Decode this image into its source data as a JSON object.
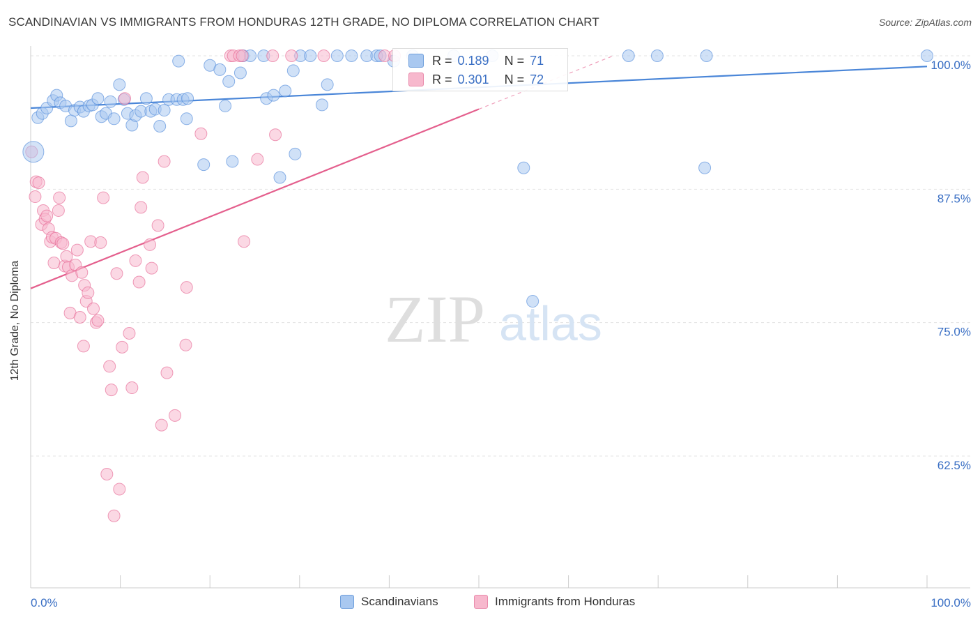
{
  "header": {
    "title": "SCANDINAVIAN VS IMMIGRANTS FROM HONDURAS 12TH GRADE, NO DIPLOMA CORRELATION CHART",
    "source": "Source: ZipAtlas.com"
  },
  "watermark": {
    "zip": "ZIP",
    "atlas": "atlas"
  },
  "correlation_legend": {
    "rows": [
      {
        "r_label": "R =",
        "r_value": "0.189",
        "n_label": "N =",
        "n_value": "71",
        "color": "#a9c8f0"
      },
      {
        "r_label": "R =",
        "r_value": "0.301",
        "n_label": "N =",
        "n_value": "72",
        "color": "#f7b8cd"
      }
    ]
  },
  "bottom_legend": {
    "items": [
      {
        "label": "Scandinavians",
        "color": "#a9c8f0"
      },
      {
        "label": "Immigrants from Honduras",
        "color": "#f7b8cd"
      }
    ]
  },
  "chart_data": {
    "type": "scatter",
    "title": "SCANDINAVIAN VS IMMIGRANTS FROM HONDURAS 12TH GRADE, NO DIPLOMA CORRELATION CHART",
    "xlabel": "",
    "ylabel": "12th Grade, No Diploma",
    "xlim": [
      0,
      100
    ],
    "ylim": [
      50,
      101.5
    ],
    "x_tick_labels": [
      "0.0%",
      "100.0%"
    ],
    "y_ticks": [
      62.5,
      75.0,
      87.5,
      100.0
    ],
    "y_tick_labels": [
      "62.5%",
      "75.0%",
      "87.5%",
      "100.0%"
    ],
    "grid": true,
    "series": [
      {
        "name": "Scandinavians",
        "color": "#4a86d8",
        "fill": "#a9c8f0",
        "trend": {
          "x0": 0,
          "y0": 95.1,
          "x1": 100,
          "y1": 99.0
        },
        "points": [
          [
            0.8,
            94.2
          ],
          [
            1.3,
            94.6
          ],
          [
            1.8,
            95.1
          ],
          [
            2.5,
            95.8
          ],
          [
            2.9,
            96.3
          ],
          [
            3.3,
            95.6
          ],
          [
            3.9,
            95.3
          ],
          [
            4.5,
            93.9
          ],
          [
            4.9,
            94.9
          ],
          [
            5.5,
            95.2
          ],
          [
            5.9,
            94.8
          ],
          [
            6.5,
            95.3
          ],
          [
            6.9,
            95.4
          ],
          [
            7.5,
            96.0
          ],
          [
            7.9,
            94.3
          ],
          [
            8.4,
            94.6
          ],
          [
            8.9,
            95.7
          ],
          [
            9.3,
            94.1
          ],
          [
            9.9,
            97.3
          ],
          [
            10.4,
            95.9
          ],
          [
            10.8,
            94.6
          ],
          [
            11.3,
            93.5
          ],
          [
            11.7,
            94.4
          ],
          [
            12.3,
            94.8
          ],
          [
            12.9,
            96.0
          ],
          [
            13.4,
            94.8
          ],
          [
            13.9,
            95.0
          ],
          [
            14.4,
            93.4
          ],
          [
            14.9,
            94.9
          ],
          [
            15.4,
            95.9
          ],
          [
            16.3,
            95.9
          ],
          [
            17.0,
            95.9
          ],
          [
            17.5,
            96.0
          ],
          [
            17.4,
            94.1
          ],
          [
            16.5,
            99.5
          ],
          [
            19.3,
            89.8
          ],
          [
            20.0,
            99.1
          ],
          [
            21.1,
            98.7
          ],
          [
            21.7,
            95.3
          ],
          [
            22.1,
            97.6
          ],
          [
            22.5,
            90.1
          ],
          [
            23.4,
            98.4
          ],
          [
            23.7,
            100.0
          ],
          [
            24.5,
            100.0
          ],
          [
            26.0,
            100.0
          ],
          [
            26.3,
            96.0
          ],
          [
            27.1,
            96.3
          ],
          [
            28.4,
            96.7
          ],
          [
            29.3,
            98.6
          ],
          [
            29.5,
            90.8
          ],
          [
            27.8,
            88.6
          ],
          [
            30.1,
            100.0
          ],
          [
            31.2,
            100.0
          ],
          [
            32.5,
            95.4
          ],
          [
            33.1,
            97.3
          ],
          [
            34.2,
            100.0
          ],
          [
            35.8,
            100.0
          ],
          [
            37.5,
            100.0
          ],
          [
            38.6,
            100.0
          ],
          [
            39.0,
            100.0
          ],
          [
            40.5,
            99.5
          ],
          [
            42.6,
            100.0
          ],
          [
            47.2,
            100.0
          ],
          [
            51.5,
            100.0
          ],
          [
            55.0,
            89.5
          ],
          [
            56.0,
            77.0
          ],
          [
            66.7,
            100.0
          ],
          [
            69.9,
            100.0
          ],
          [
            75.2,
            89.5
          ],
          [
            75.4,
            100.0
          ],
          [
            100.0,
            100.0
          ]
        ]
      },
      {
        "name": "Immigrants from Honduras",
        "color": "#e45f8d",
        "fill": "#f7b8cd",
        "trend": {
          "x0": 0,
          "y0": 78.2,
          "x1": 50,
          "y1": 95.0
        },
        "trend_dashed": {
          "x0": 50,
          "y0": 95.0,
          "x1": 65,
          "y1": 100.0
        },
        "points": [
          [
            0.1,
            91.0
          ],
          [
            0.5,
            86.8
          ],
          [
            0.6,
            88.2
          ],
          [
            0.9,
            88.1
          ],
          [
            1.2,
            84.2
          ],
          [
            1.4,
            85.5
          ],
          [
            1.6,
            84.7
          ],
          [
            1.8,
            85.0
          ],
          [
            2.0,
            83.8
          ],
          [
            2.2,
            82.6
          ],
          [
            2.4,
            83.0
          ],
          [
            2.6,
            80.6
          ],
          [
            2.8,
            82.9
          ],
          [
            3.1,
            85.5
          ],
          [
            3.2,
            86.7
          ],
          [
            3.4,
            82.5
          ],
          [
            3.6,
            82.4
          ],
          [
            3.8,
            80.3
          ],
          [
            4.0,
            81.2
          ],
          [
            4.2,
            80.2
          ],
          [
            4.4,
            75.9
          ],
          [
            4.6,
            79.4
          ],
          [
            5.0,
            80.4
          ],
          [
            5.2,
            81.8
          ],
          [
            5.5,
            75.5
          ],
          [
            5.7,
            79.7
          ],
          [
            5.9,
            72.8
          ],
          [
            6.0,
            78.5
          ],
          [
            6.2,
            77.0
          ],
          [
            6.4,
            77.8
          ],
          [
            6.7,
            82.6
          ],
          [
            7.0,
            76.3
          ],
          [
            7.3,
            75.0
          ],
          [
            7.5,
            75.2
          ],
          [
            7.8,
            82.5
          ],
          [
            8.1,
            86.7
          ],
          [
            8.5,
            60.8
          ],
          [
            8.8,
            70.9
          ],
          [
            9.0,
            68.7
          ],
          [
            9.3,
            56.9
          ],
          [
            9.6,
            79.6
          ],
          [
            9.9,
            59.4
          ],
          [
            10.2,
            72.7
          ],
          [
            10.5,
            96.0
          ],
          [
            11.0,
            74.0
          ],
          [
            11.3,
            68.9
          ],
          [
            11.7,
            80.8
          ],
          [
            12.1,
            78.8
          ],
          [
            12.3,
            85.8
          ],
          [
            12.5,
            88.6
          ],
          [
            13.3,
            82.3
          ],
          [
            13.5,
            80.1
          ],
          [
            14.2,
            84.1
          ],
          [
            14.6,
            65.4
          ],
          [
            14.9,
            90.1
          ],
          [
            15.2,
            70.3
          ],
          [
            16.1,
            66.3
          ],
          [
            17.3,
            72.9
          ],
          [
            17.4,
            78.3
          ],
          [
            19.0,
            92.7
          ],
          [
            22.3,
            100.0
          ],
          [
            22.6,
            100.0
          ],
          [
            23.3,
            100.0
          ],
          [
            23.6,
            100.0
          ],
          [
            23.8,
            82.6
          ],
          [
            25.3,
            90.3
          ],
          [
            27.0,
            100.0
          ],
          [
            27.3,
            92.6
          ],
          [
            29.1,
            100.0
          ],
          [
            32.7,
            100.0
          ],
          [
            39.5,
            100.0
          ],
          [
            40.6,
            100.0
          ]
        ]
      }
    ]
  }
}
